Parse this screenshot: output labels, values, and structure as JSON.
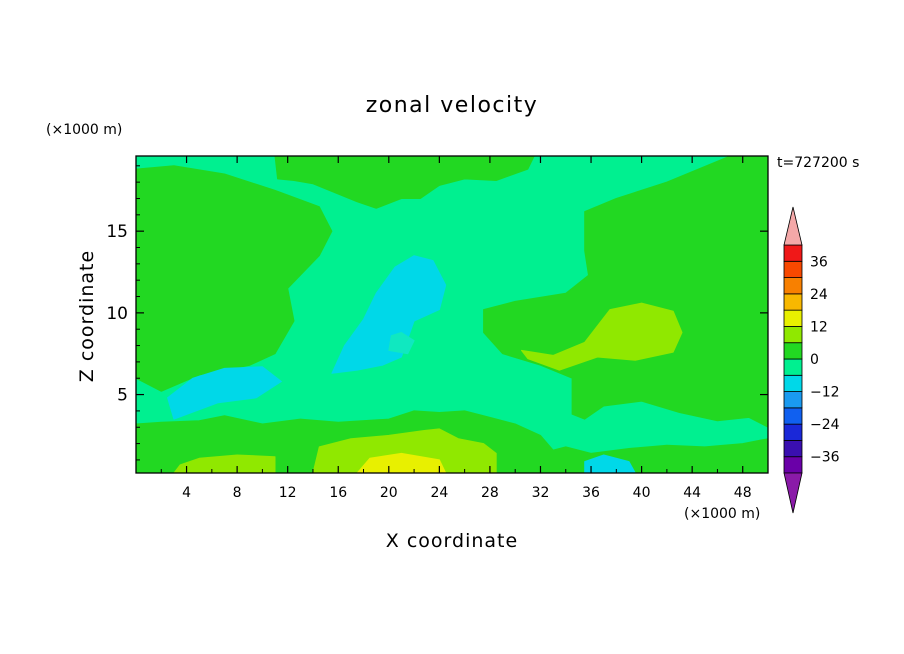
{
  "chart_data": {
    "type": "heatmap",
    "title": "zonal velocity",
    "xlabel": "X coordinate",
    "ylabel": "Z coordinate",
    "x_unit_label": "(×1000 m)",
    "y_unit_label": "(×1000 m)",
    "time_label": "t=727200 s",
    "xlim": [
      0,
      50
    ],
    "ylim": [
      0.2,
      19.6
    ],
    "x_ticks": [
      4,
      8,
      12,
      16,
      20,
      24,
      28,
      32,
      36,
      40,
      44,
      48
    ],
    "y_ticks": [
      5,
      10,
      15
    ],
    "colorbar": {
      "levels": [
        -42,
        -36,
        -30,
        -24,
        -18,
        -12,
        -6,
        0,
        6,
        12,
        18,
        24,
        30,
        36,
        42
      ],
      "tick_values": [
        36,
        24,
        12,
        0,
        -12,
        -24,
        -36
      ],
      "tick_labels": [
        "36",
        "24",
        "12",
        "0",
        "−12",
        "−24",
        "−36"
      ],
      "colors": [
        "#6a00a8",
        "#3a0fb0",
        "#1a28d8",
        "#1060f0",
        "#1a9af0",
        "#00d8e8",
        "#00f090",
        "#22d822",
        "#90e800",
        "#e8f000",
        "#f8b800",
        "#f88000",
        "#f84800",
        "#f01818"
      ],
      "over_color": "#f4a8a8",
      "under_color": "#8a1aa8"
    },
    "field_colors": {
      "bg": "#00f090",
      "green": "#22d822",
      "lime": "#90e800",
      "yellow": "#e8f000",
      "cyan": "#00d8e8",
      "paleCyan": "#10e8c0"
    },
    "regions": [
      {
        "color": "green",
        "poly": [
          [
            0,
            6
          ],
          [
            2,
            5.2
          ],
          [
            5,
            6.2
          ],
          [
            9,
            6.8
          ],
          [
            11,
            7.5
          ],
          [
            12.5,
            9.5
          ],
          [
            12,
            11.5
          ],
          [
            14.5,
            13.5
          ],
          [
            15.5,
            15
          ],
          [
            14.5,
            16.5
          ],
          [
            11,
            17.5
          ],
          [
            7,
            18.5
          ],
          [
            3,
            19
          ],
          [
            0,
            18.8
          ]
        ]
      },
      {
        "color": "green",
        "poly": [
          [
            11,
            19.6
          ],
          [
            11.2,
            18.2
          ],
          [
            12.5,
            18.1
          ],
          [
            14,
            17.9
          ],
          [
            17.5,
            16.8
          ],
          [
            19,
            16.4
          ],
          [
            21,
            17
          ],
          [
            22.5,
            17
          ],
          [
            24,
            17.8
          ],
          [
            26,
            18.2
          ],
          [
            28.5,
            18.1
          ],
          [
            31,
            18.8
          ],
          [
            31.5,
            19.6
          ]
        ]
      },
      {
        "color": "green",
        "poly": [
          [
            50,
            19.6
          ],
          [
            50,
            3
          ],
          [
            48.5,
            3.6
          ],
          [
            46,
            3.4
          ],
          [
            43,
            3.9
          ],
          [
            40,
            4.6
          ],
          [
            37,
            4.3
          ],
          [
            35.5,
            3.5
          ],
          [
            34.5,
            3.8
          ],
          [
            34.5,
            6
          ],
          [
            32,
            6.8
          ],
          [
            29,
            7.5
          ],
          [
            27.5,
            8.8
          ],
          [
            27.5,
            10.2
          ],
          [
            30,
            10.7
          ],
          [
            34,
            11.2
          ],
          [
            35.8,
            12.3
          ],
          [
            35.5,
            13.8
          ],
          [
            35.5,
            16.2
          ],
          [
            38,
            17
          ],
          [
            42,
            18
          ],
          [
            47,
            19.6
          ]
        ]
      },
      {
        "color": "green",
        "poly": [
          [
            0,
            0.2
          ],
          [
            50,
            0.2
          ],
          [
            50,
            2.3
          ],
          [
            48,
            2
          ],
          [
            45,
            1.8
          ],
          [
            42,
            1.9
          ],
          [
            39,
            1.7
          ],
          [
            36,
            1.4
          ],
          [
            34,
            1.8
          ],
          [
            33,
            1.6
          ],
          [
            32,
            2.5
          ],
          [
            30,
            3.2
          ],
          [
            28,
            3.6
          ],
          [
            26,
            4
          ],
          [
            24,
            3.9
          ],
          [
            22,
            4
          ],
          [
            20,
            3.5
          ],
          [
            16,
            3.3
          ],
          [
            13,
            3.5
          ],
          [
            10,
            3.2
          ],
          [
            7,
            3.7
          ],
          [
            5,
            3.4
          ],
          [
            2,
            3.3
          ],
          [
            0,
            3.2
          ]
        ]
      },
      {
        "color": "lime",
        "poly": [
          [
            30.5,
            7.7
          ],
          [
            33,
            7.4
          ],
          [
            35.5,
            8.2
          ],
          [
            37.5,
            10.2
          ],
          [
            40,
            10.6
          ],
          [
            42.5,
            10.1
          ],
          [
            43.2,
            8.8
          ],
          [
            42.5,
            7.6
          ],
          [
            39.5,
            7.1
          ],
          [
            36.5,
            7.3
          ],
          [
            33.5,
            6.5
          ],
          [
            31,
            7.2
          ]
        ]
      },
      {
        "color": "lime",
        "poly": [
          [
            14,
            0.2
          ],
          [
            28.5,
            0.2
          ],
          [
            28.5,
            1.4
          ],
          [
            27.5,
            2
          ],
          [
            25.5,
            2.3
          ],
          [
            24,
            2.9
          ],
          [
            22.8,
            2.8
          ],
          [
            20,
            2.5
          ],
          [
            17,
            2.3
          ],
          [
            14.5,
            1.8
          ]
        ]
      },
      {
        "color": "lime",
        "poly": [
          [
            3,
            0.2
          ],
          [
            11,
            0.2
          ],
          [
            11,
            1.2
          ],
          [
            8,
            1.3
          ],
          [
            5,
            1.1
          ],
          [
            3.5,
            0.7
          ]
        ]
      },
      {
        "color": "yellow",
        "poly": [
          [
            17.5,
            0.2
          ],
          [
            24.5,
            0.2
          ],
          [
            24,
            1
          ],
          [
            21,
            1.4
          ],
          [
            18.5,
            1.1
          ]
        ]
      },
      {
        "color": "cyan",
        "poly": [
          [
            15.5,
            6.3
          ],
          [
            17.5,
            6.5
          ],
          [
            19.5,
            6.8
          ],
          [
            21,
            7.3
          ],
          [
            22,
            9.5
          ],
          [
            24,
            10.2
          ],
          [
            24.5,
            11.7
          ],
          [
            23.5,
            13.2
          ],
          [
            22,
            13.5
          ],
          [
            20.5,
            12.8
          ],
          [
            19,
            11.2
          ],
          [
            18,
            9.6
          ],
          [
            16.5,
            8
          ]
        ]
      },
      {
        "color": "cyan",
        "poly": [
          [
            3,
            3.5
          ],
          [
            6.5,
            4.5
          ],
          [
            9.5,
            4.8
          ],
          [
            11.5,
            5.8
          ],
          [
            10,
            6.7
          ],
          [
            7,
            6.6
          ],
          [
            4.5,
            6
          ],
          [
            2.5,
            4.8
          ]
        ]
      },
      {
        "color": "cyan",
        "poly": [
          [
            35.5,
            0.2
          ],
          [
            39.5,
            0.2
          ],
          [
            39,
            0.9
          ],
          [
            37,
            1.3
          ],
          [
            35.5,
            0.9
          ]
        ]
      },
      {
        "color": "paleCyan",
        "poly": [
          [
            20,
            7.7
          ],
          [
            21.5,
            7.5
          ],
          [
            22,
            8.3
          ],
          [
            21,
            8.8
          ],
          [
            20.2,
            8.6
          ]
        ]
      }
    ]
  }
}
